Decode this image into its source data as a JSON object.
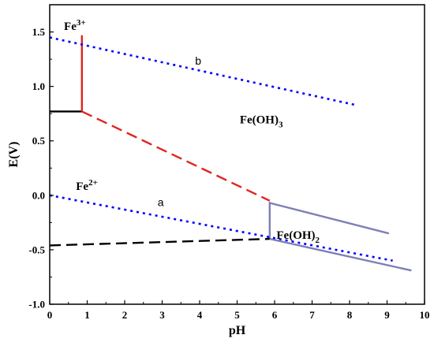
{
  "chart_data": {
    "type": "line",
    "title": "",
    "xlabel": "pH",
    "ylabel": "E(V)",
    "xlim": [
      0,
      10
    ],
    "ylim": [
      -1.0,
      1.75
    ],
    "xticks": [
      "0",
      "1",
      "2",
      "3",
      "4",
      "5",
      "6",
      "7",
      "8",
      "9",
      "10"
    ],
    "yticks": [
      "-1.0",
      "-0.5",
      "0.0",
      "0.5",
      "1.0",
      "1.5"
    ],
    "ytick_values": [
      -1.0,
      -0.5,
      0.0,
      0.5,
      1.0,
      1.5
    ],
    "grid": false,
    "legend": "none",
    "lines": [
      {
        "id": "fe3-fe2-boundary",
        "color": "#000000",
        "style": "solid",
        "points": [
          [
            0,
            0.77
          ],
          [
            0.86,
            0.77
          ]
        ]
      },
      {
        "id": "fe3-feoh3-boundary",
        "color": "#e3231e",
        "style": "solid",
        "points": [
          [
            0.86,
            1.47
          ],
          [
            0.86,
            0.77
          ]
        ]
      },
      {
        "id": "fe2-feoh3-boundary",
        "color": "#e3231e",
        "style": "dashed",
        "points": [
          [
            0.86,
            0.77
          ],
          [
            5.87,
            -0.05
          ]
        ]
      },
      {
        "id": "fe2-feoh2-boundary",
        "color": "#7f7fb7",
        "style": "solid",
        "points": [
          [
            5.87,
            -0.06
          ],
          [
            5.87,
            -0.4
          ]
        ]
      },
      {
        "id": "feoh3-feoh2-boundary",
        "color": "#7f7fb7",
        "style": "solid",
        "points": [
          [
            5.87,
            -0.07
          ],
          [
            9.05,
            -0.35
          ]
        ]
      },
      {
        "id": "feoh2-fe-boundary",
        "color": "#7f7fb7",
        "style": "solid",
        "points": [
          [
            5.87,
            -0.4
          ],
          [
            9.65,
            -0.69
          ]
        ]
      },
      {
        "id": "fe2-fe-boundary",
        "color": "#000000",
        "style": "dashed",
        "points": [
          [
            0,
            -0.46
          ],
          [
            5.87,
            -0.4
          ]
        ]
      },
      {
        "id": "line-b",
        "color": "#0000ff",
        "style": "dotted",
        "points": [
          [
            0,
            1.45
          ],
          [
            8.15,
            0.83
          ]
        ]
      },
      {
        "id": "line-a",
        "color": "#0000ff",
        "style": "dotted",
        "points": [
          [
            0,
            0.0
          ],
          [
            9.15,
            -0.6
          ]
        ]
      }
    ],
    "annotations": [
      {
        "id": "fe3",
        "base": "Fe",
        "sup": "3+",
        "x": 0.38,
        "y": 1.52
      },
      {
        "id": "fe2",
        "base": "Fe",
        "sup": "2+",
        "x": 0.7,
        "y": 0.05
      },
      {
        "id": "feoh3",
        "base": "Fe(OH)",
        "sub": "3",
        "x": 5.07,
        "y": 0.66
      },
      {
        "id": "feoh2",
        "base": "Fe(OH)",
        "sub": "2",
        "x": 6.05,
        "y": -0.4
      }
    ],
    "line_labels": [
      {
        "id": "b",
        "text": "b",
        "x": 3.88,
        "y": 1.2
      },
      {
        "id": "a",
        "text": "a",
        "x": 2.88,
        "y": -0.1
      }
    ]
  }
}
